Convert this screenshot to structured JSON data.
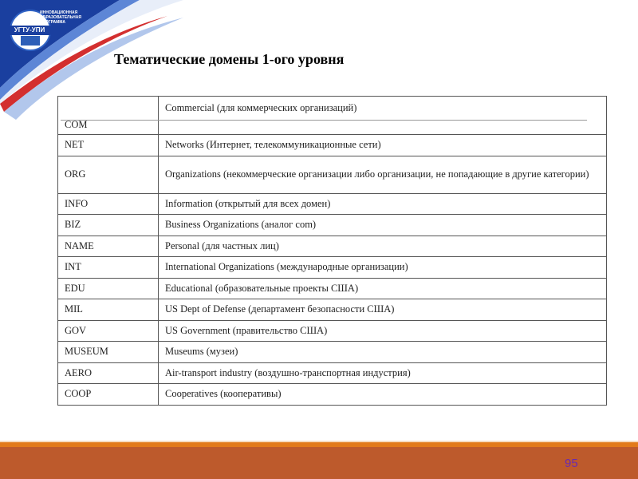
{
  "header": {
    "logo_text": "ИННОВАЦИОННАЯ ОБРАЗОВАТЕЛЬНАЯ ПРОГРАММА",
    "logo_badge": "УГТУ-УПИ"
  },
  "title": "Тематические домены 1-ого уровня",
  "table": {
    "rows": [
      {
        "domain": "COM",
        "description": "Commercial (для коммерческих организаций)"
      },
      {
        "domain": "NET",
        "description": "Networks (Интернет, телекоммуникационные сети)"
      },
      {
        "domain": "ORG",
        "description": "Organizations (некоммерческие организации либо организации, не попадающие в другие категории)"
      },
      {
        "domain": "INFO",
        "description": "Information (открытый для всех домен)"
      },
      {
        "domain": "BIZ",
        "description": "Business Organizations (аналог com)"
      },
      {
        "domain": "NAME",
        "description": "Personal (для частных лиц)"
      },
      {
        "domain": "INT",
        "description": "International Organizations (международные организации)"
      },
      {
        "domain": "EDU",
        "description": "Educational (образовательные проекты США)"
      },
      {
        "domain": "MIL",
        "description": "US Dept of Defense (департамент безопасности США)"
      },
      {
        "domain": "GOV",
        "description": "US Government (правительство США)"
      },
      {
        "domain": "MUSEUM",
        "description": "Museums (музеи)"
      },
      {
        "domain": "AERO",
        "description": "Air-transport industry (воздушно-транспортная индустрия)"
      },
      {
        "domain": "COOP",
        "description": "Cooperatives (кооперативы)"
      }
    ]
  },
  "footer": {
    "page_number": "95"
  },
  "colors": {
    "footer_bar": "#bd5a2c",
    "footer_stripe": "#e27a1a",
    "banner_blue": "#1a3f9f",
    "banner_red": "#d32f2f",
    "page_number": "#6a2bb0"
  }
}
